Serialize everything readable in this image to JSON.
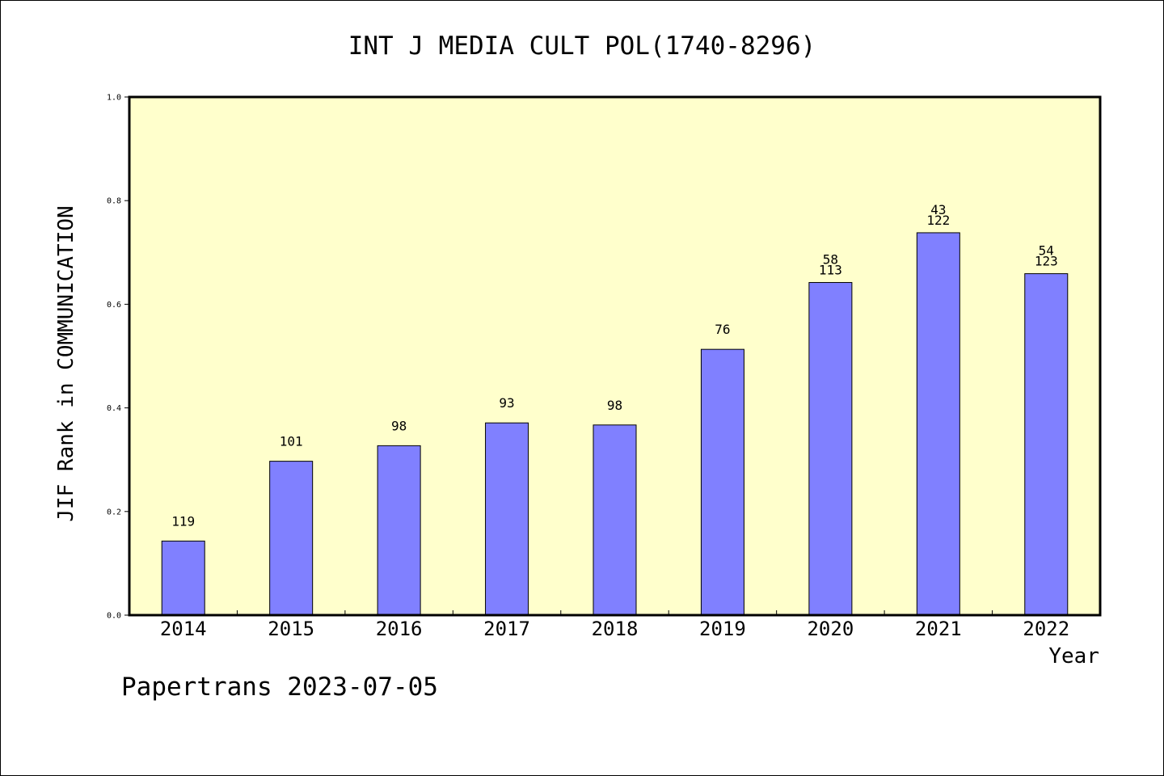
{
  "colors": {
    "plot_background": "#ffffcc",
    "bar_fill": "#8080ff",
    "bar_stroke": "#000000",
    "axis": "#000000",
    "text": "#000000"
  },
  "footer": "Papertrans 2023-07-05",
  "chart_data": {
    "type": "bar",
    "title": "INT J MEDIA CULT POL(1740-8296)",
    "xlabel": "Year",
    "ylabel": "JIF Rank in COMMUNICATION",
    "ylim": [
      0,
      1.0
    ],
    "yticks": [
      "0.0",
      "0.2",
      "0.4",
      "0.6",
      "0.8",
      "1.0"
    ],
    "grid": false,
    "categories": [
      "2014",
      "2015",
      "2016",
      "2017",
      "2018",
      "2019",
      "2020",
      "2021",
      "2022"
    ],
    "values": [
      0.143,
      0.297,
      0.327,
      0.371,
      0.367,
      0.513,
      0.642,
      0.738,
      0.659
    ],
    "bar_labels": [
      [
        "119"
      ],
      [
        "101"
      ],
      [
        "98"
      ],
      [
        "93"
      ],
      [
        "98"
      ],
      [
        "76"
      ],
      [
        "58",
        "113"
      ],
      [
        "43",
        "122"
      ],
      [
        "54",
        "123"
      ]
    ]
  }
}
